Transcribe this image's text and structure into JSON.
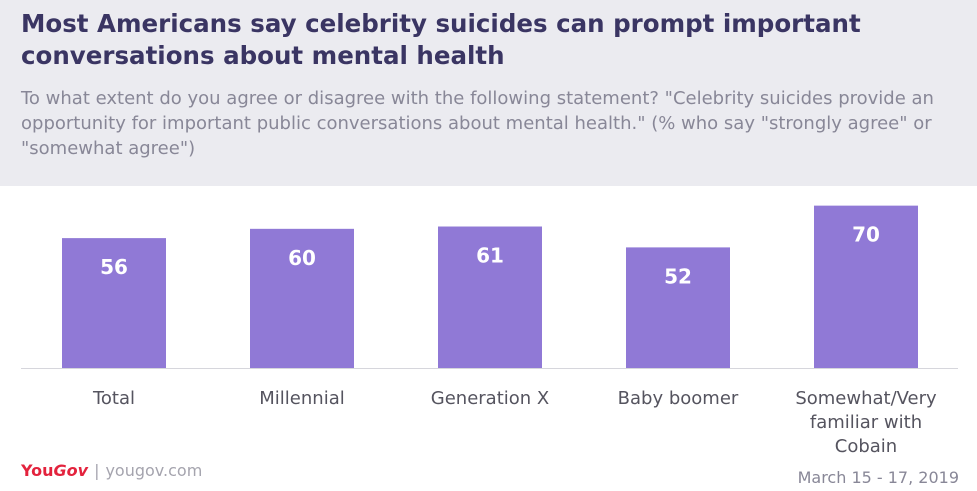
{
  "header": {
    "title": "Most Americans say celebrity suicides can prompt important conversations about mental health",
    "subtitle": "To what extent do you agree or disagree with the following statement? \"Celebrity suicides provide an opportunity for important public conversations about mental health.\" (% who say \"strongly agree\" or \"somewhat agree\")"
  },
  "chart_data": {
    "type": "bar",
    "categories": [
      "Total",
      "Millennial",
      "Generation X",
      "Baby boomer",
      "Somewhat/Very familiar with Cobain"
    ],
    "category_lines": [
      [
        "Total"
      ],
      [
        "Millennial"
      ],
      [
        "Generation X"
      ],
      [
        "Baby boomer"
      ],
      [
        "Somewhat/Very",
        "familiar with",
        "Cobain"
      ]
    ],
    "values": [
      56,
      60,
      61,
      52,
      70
    ],
    "ylim": [
      0,
      72
    ],
    "bar_color": "#9079d6"
  },
  "footer": {
    "logo_you": "You",
    "logo_gov": "Gov",
    "logo_sep": "|",
    "logo_url": "yougov.com",
    "date": "March 15 - 17, 2019"
  }
}
